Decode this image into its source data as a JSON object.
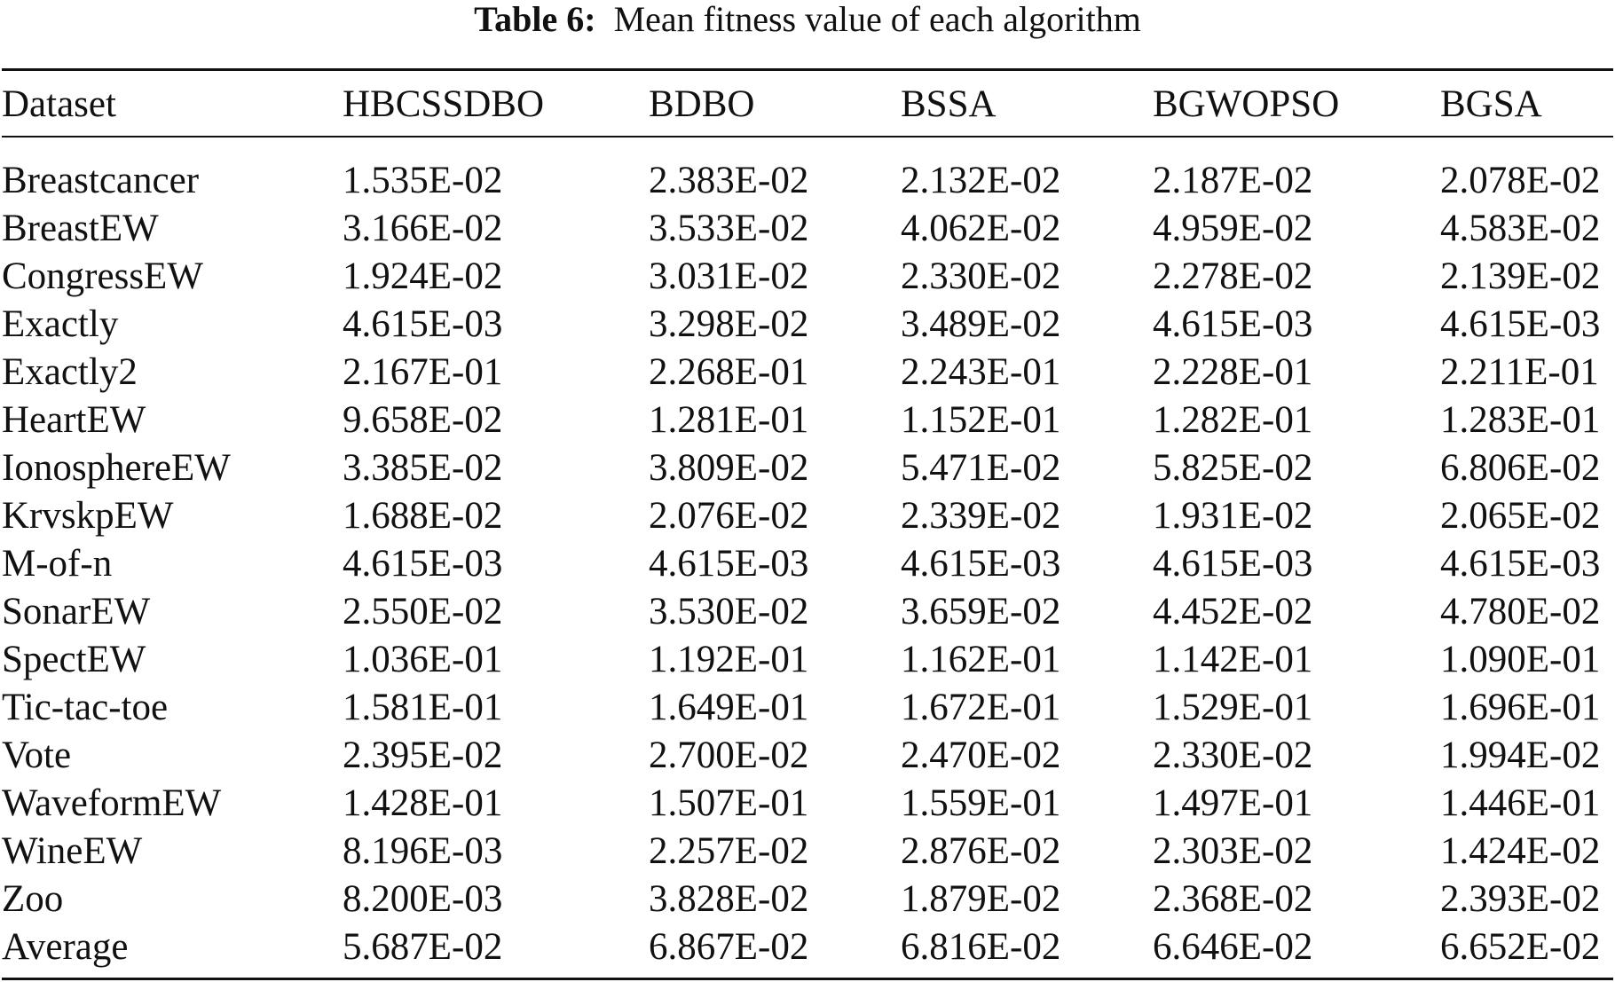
{
  "caption": {
    "label": "Table 6:",
    "text": "Mean fitness value of each algorithm"
  },
  "table": {
    "headers": [
      "Dataset",
      "HBCSSDBO",
      "BDBO",
      "BSSA",
      "BGWOPSO",
      "BGSA"
    ],
    "rows": [
      {
        "dataset": "Breastcancer",
        "values": [
          "1.535E-02",
          "2.383E-02",
          "2.132E-02",
          "2.187E-02",
          "2.078E-02"
        ],
        "best": [
          true,
          false,
          false,
          false,
          false
        ]
      },
      {
        "dataset": "BreastEW",
        "values": [
          "3.166E-02",
          "3.533E-02",
          "4.062E-02",
          "4.959E-02",
          "4.583E-02"
        ],
        "best": [
          true,
          false,
          false,
          false,
          false
        ]
      },
      {
        "dataset": "CongressEW",
        "values": [
          "1.924E-02",
          "3.031E-02",
          "2.330E-02",
          "2.278E-02",
          "2.139E-02"
        ],
        "best": [
          true,
          false,
          false,
          false,
          false
        ]
      },
      {
        "dataset": "Exactly",
        "values": [
          "4.615E-03",
          "3.298E-02",
          "3.489E-02",
          "4.615E-03",
          "4.615E-03"
        ],
        "best": [
          true,
          false,
          false,
          true,
          true
        ]
      },
      {
        "dataset": "Exactly2",
        "values": [
          "2.167E-01",
          "2.268E-01",
          "2.243E-01",
          "2.228E-01",
          "2.211E-01"
        ],
        "best": [
          true,
          false,
          false,
          false,
          false
        ]
      },
      {
        "dataset": "HeartEW",
        "values": [
          "9.658E-02",
          "1.281E-01",
          "1.152E-01",
          "1.282E-01",
          "1.283E-01"
        ],
        "best": [
          true,
          false,
          false,
          false,
          false
        ]
      },
      {
        "dataset": "IonosphereEW",
        "values": [
          "3.385E-02",
          "3.809E-02",
          "5.471E-02",
          "5.825E-02",
          "6.806E-02"
        ],
        "best": [
          true,
          false,
          false,
          false,
          false
        ]
      },
      {
        "dataset": "KrvskpEW",
        "values": [
          "1.688E-02",
          "2.076E-02",
          "2.339E-02",
          "1.931E-02",
          "2.065E-02"
        ],
        "best": [
          true,
          false,
          false,
          false,
          false
        ]
      },
      {
        "dataset": "M-of-n",
        "values": [
          "4.615E-03",
          "4.615E-03",
          "4.615E-03",
          "4.615E-03",
          "4.615E-03"
        ],
        "best": [
          true,
          true,
          true,
          true,
          true
        ]
      },
      {
        "dataset": "SonarEW",
        "values": [
          "2.550E-02",
          "3.530E-02",
          "3.659E-02",
          "4.452E-02",
          "4.780E-02"
        ],
        "best": [
          true,
          false,
          false,
          false,
          false
        ]
      },
      {
        "dataset": "SpectEW",
        "values": [
          "1.036E-01",
          "1.192E-01",
          "1.162E-01",
          "1.142E-01",
          "1.090E-01"
        ],
        "best": [
          true,
          false,
          false,
          false,
          false
        ]
      },
      {
        "dataset": "Tic-tac-toe",
        "values": [
          "1.581E-01",
          "1.649E-01",
          "1.672E-01",
          "1.529E-01",
          "1.696E-01"
        ],
        "best": [
          false,
          false,
          false,
          true,
          false
        ]
      },
      {
        "dataset": "Vote",
        "values": [
          "2.395E-02",
          "2.700E-02",
          "2.470E-02",
          "2.330E-02",
          "1.994E-02"
        ],
        "best": [
          false,
          false,
          false,
          false,
          true
        ]
      },
      {
        "dataset": "WaveformEW",
        "values": [
          "1.428E-01",
          "1.507E-01",
          "1.559E-01",
          "1.497E-01",
          "1.446E-01"
        ],
        "best": [
          true,
          false,
          false,
          false,
          false
        ]
      },
      {
        "dataset": "WineEW",
        "values": [
          "8.196E-03",
          "2.257E-02",
          "2.876E-02",
          "2.303E-02",
          "1.424E-02"
        ],
        "best": [
          true,
          false,
          false,
          false,
          false
        ]
      },
      {
        "dataset": "Zoo",
        "values": [
          "8.200E-03",
          "3.828E-02",
          "1.879E-02",
          "2.368E-02",
          "2.393E-02"
        ],
        "best": [
          true,
          false,
          false,
          false,
          false
        ]
      },
      {
        "dataset": "Average",
        "values": [
          "5.687E-02",
          "6.867E-02",
          "6.816E-02",
          "6.646E-02",
          "6.652E-02"
        ],
        "best": [
          true,
          false,
          false,
          false,
          false
        ]
      }
    ]
  }
}
